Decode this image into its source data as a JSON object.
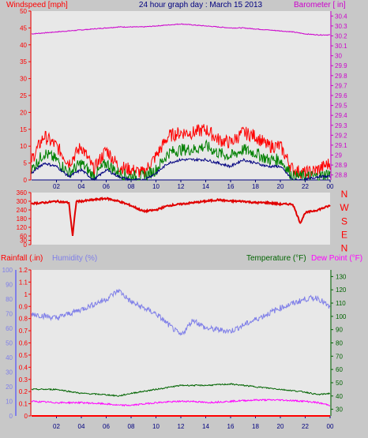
{
  "header": {
    "title": "24 hour graph day : March 15 2013",
    "left_label": "Windspeed [mph]",
    "right_label": "Barometer [ in]"
  },
  "bottom_labels": {
    "rainfall": "Rainfall (.in)",
    "humidity": "Humidity (%)",
    "temperature": "Temperature (°F)",
    "dewpoint": "Dew Point (°F)"
  },
  "colors": {
    "background": "#c8c8c8",
    "plot_bg": "#e8e8e8",
    "wind_gust": "#ff0000",
    "wind_speed": "#008000",
    "wind_avg": "#000080",
    "barometer": "#cc00cc",
    "direction": "#e00000",
    "humidity": "#7f7fe8",
    "temperature": "#006400",
    "dewpoint": "#ff00ff",
    "rainfall": "#ff0000"
  },
  "chart_data": [
    {
      "type": "line",
      "title": "24 hour graph day : March 15 2013",
      "ylabel": "Windspeed [mph]",
      "y2label": "Barometer [ in]",
      "ylim": [
        0,
        50
      ],
      "y2lim": [
        28.75,
        30.45
      ],
      "xticks": [
        "02",
        "04",
        "06",
        "08",
        "10",
        "12",
        "14",
        "16",
        "18",
        "20",
        "22",
        "00"
      ],
      "yticks": [
        "0",
        "5",
        "10",
        "15",
        "20",
        "25",
        "30",
        "35",
        "40",
        "45",
        "50"
      ],
      "y2ticks": [
        "28.8",
        "28.9",
        "29",
        "29.1",
        "29.2",
        "29.3",
        "29.4",
        "29.5",
        "29.6",
        "29.7",
        "29.8",
        "29.9",
        "30",
        "30.1",
        "30.2",
        "30.3",
        "30.4"
      ],
      "x_hours": [
        0,
        1,
        2,
        3,
        4,
        5,
        6,
        7,
        8,
        9,
        10,
        11,
        12,
        13,
        14,
        15,
        16,
        17,
        18,
        19,
        20,
        21,
        22,
        23,
        24
      ],
      "series": [
        {
          "values": [
            6,
            13,
            10,
            5,
            10,
            3,
            9,
            4,
            3,
            2,
            7,
            13,
            14,
            14,
            15,
            12,
            11,
            14,
            13,
            10,
            10,
            3,
            2,
            3,
            5
          ]
        },
        {
          "values": [
            3,
            8,
            6,
            2,
            5,
            1,
            5,
            2,
            1,
            1,
            3,
            8,
            9,
            9,
            10,
            8,
            7,
            9,
            8,
            6,
            6,
            1,
            1,
            1,
            2
          ]
        },
        {
          "values": [
            2,
            5,
            4,
            1,
            3,
            0,
            3,
            1,
            0,
            0,
            2,
            5,
            6,
            6,
            6,
            5,
            4,
            6,
            5,
            4,
            4,
            0,
            0,
            1,
            1
          ]
        },
        {
          "values": [
            30.22,
            30.23,
            30.24,
            30.25,
            30.26,
            30.27,
            30.28,
            30.29,
            30.29,
            30.29,
            30.3,
            30.31,
            30.32,
            30.31,
            30.3,
            30.29,
            30.28,
            30.28,
            30.27,
            30.26,
            30.25,
            30.24,
            30.22,
            30.21,
            30.21
          ]
        }
      ]
    },
    {
      "type": "line",
      "ylabel": "direction",
      "ylim": [
        0,
        360
      ],
      "yticks": [
        "0",
        "30",
        "60",
        "90",
        "120",
        "150",
        "180",
        "210",
        "240",
        "270",
        "300",
        "330",
        "360"
      ],
      "compass": [
        "N",
        "W",
        "S",
        "E",
        "N"
      ],
      "x_hours": [
        0,
        1,
        2,
        3,
        3.3,
        3.6,
        4,
        5,
        6,
        7,
        8,
        9,
        10,
        11,
        12,
        13,
        14,
        15,
        16,
        17,
        18,
        19,
        20,
        21,
        21.6,
        22,
        23,
        24
      ],
      "values": [
        285,
        290,
        300,
        290,
        60,
        300,
        300,
        310,
        320,
        300,
        270,
        230,
        240,
        270,
        280,
        290,
        300,
        310,
        300,
        300,
        290,
        290,
        280,
        280,
        150,
        220,
        240,
        270
      ]
    },
    {
      "type": "line",
      "title": "",
      "ylabel": "Humidity (%)",
      "y2label": "Temperature (°F)",
      "ylim": [
        0,
        100
      ],
      "y2lim": [
        25,
        135
      ],
      "rainfall_ylim": [
        0,
        1.2
      ],
      "humidity_ticks": [
        "0",
        "10",
        "20",
        "30",
        "40",
        "50",
        "60",
        "70",
        "80",
        "90",
        "100"
      ],
      "rain_ticks": [
        "0",
        "0.1",
        "0.2",
        "0.3",
        "0.4",
        "0.5",
        "0.6",
        "0.7",
        "0.8",
        "0.9",
        "1",
        "1.1",
        "1.2"
      ],
      "temp_ticks": [
        "30",
        "40",
        "50",
        "60",
        "70",
        "80",
        "90",
        "100",
        "110",
        "120",
        "130"
      ],
      "x_hours": [
        0,
        2,
        4,
        6,
        7,
        8,
        10,
        12,
        13,
        14,
        16,
        18,
        20,
        22,
        23,
        24
      ],
      "series": [
        {
          "values": [
            70,
            67,
            73,
            80,
            86,
            78,
            70,
            55,
            66,
            60,
            58,
            66,
            74,
            80,
            81,
            74
          ]
        },
        {
          "values": [
            45,
            45,
            42,
            41,
            40,
            42,
            45,
            48,
            48,
            48,
            49,
            47,
            45,
            43,
            41,
            42
          ]
        },
        {
          "values": [
            36,
            35,
            35,
            34,
            33,
            33,
            35,
            36,
            36,
            35,
            36,
            37,
            37,
            36,
            35,
            33
          ]
        },
        {
          "values": [
            0,
            0,
            0,
            0,
            0,
            0,
            0,
            0,
            0,
            0,
            0,
            0,
            0,
            0,
            0,
            0
          ]
        }
      ]
    }
  ]
}
